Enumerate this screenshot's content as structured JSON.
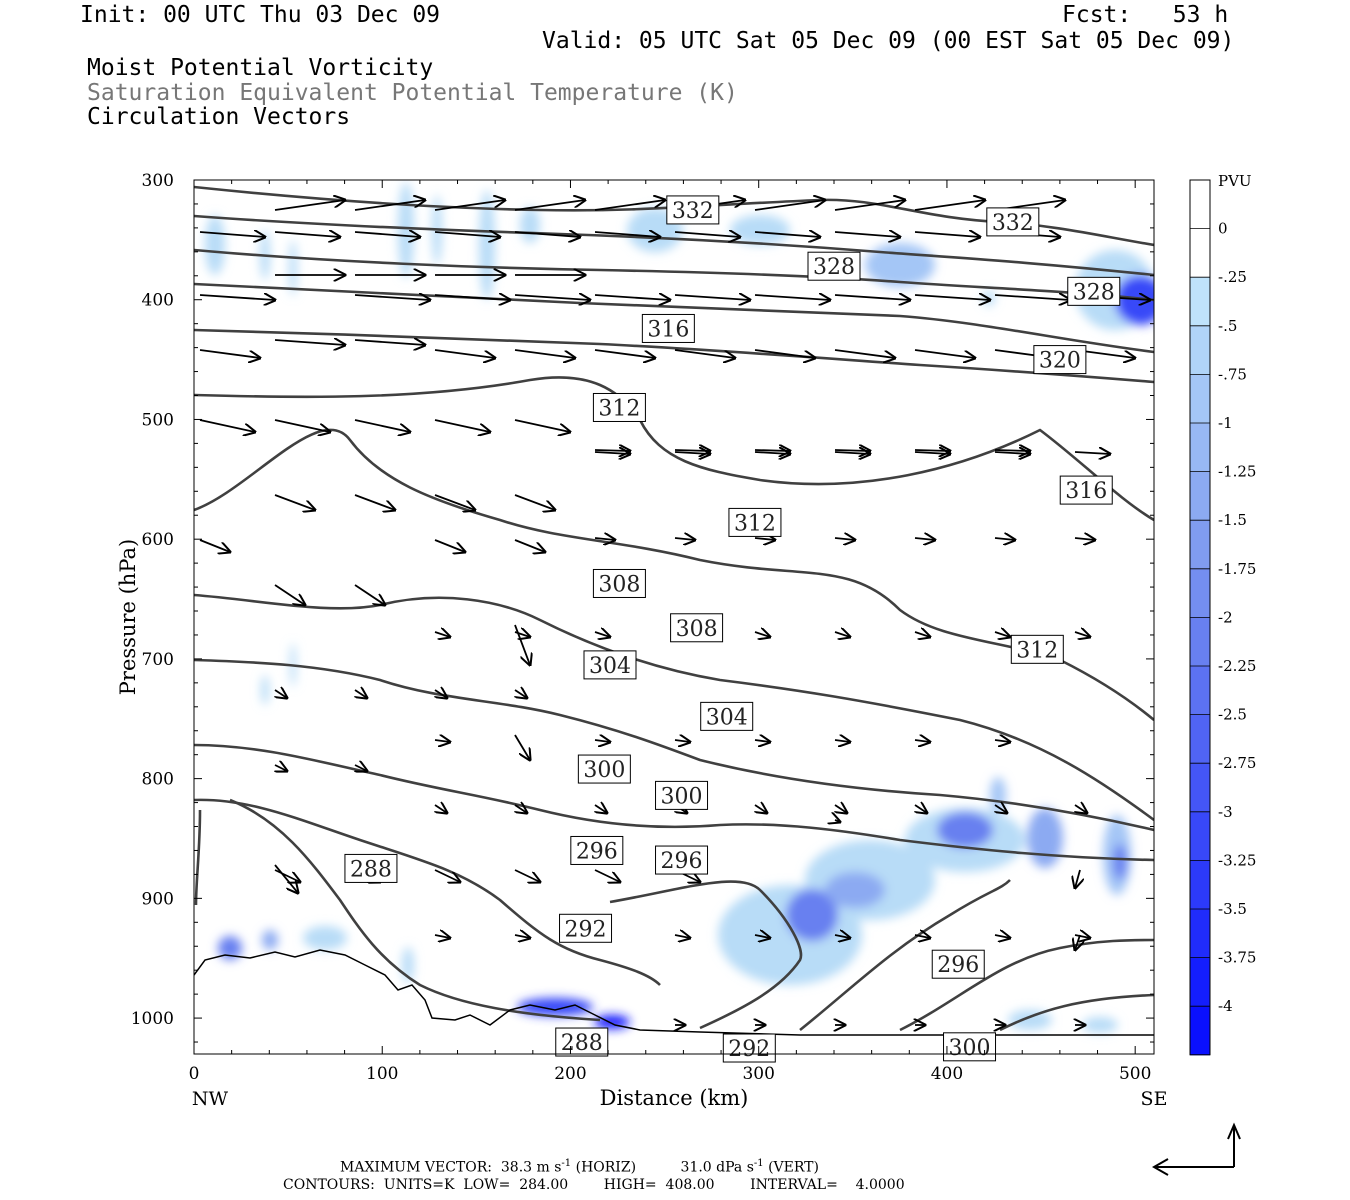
{
  "header": {
    "init": "Init: 00 UTC Thu 03 Dec 09",
    "fcst": "Fcst:   53 h",
    "valid": "Valid: 05 UTC Sat 05 Dec 09 (00 EST Sat 05 Dec 09)",
    "field1": "Moist Potential Vorticity",
    "field2": "Saturation Equivalent Potential Temperature (K)",
    "field3": "Circulation Vectors"
  },
  "footer": {
    "max_vector_prefix": "MAXIMUM VECTOR:  38.3 m s",
    "max_vector_exp1": "-1",
    "max_vector_mid": " (HORIZ)          31.0 dPa s",
    "max_vector_exp2": "-1",
    "max_vector_suffix": " (VERT)",
    "contours": "CONTOURS:  UNITS=K  LOW=  284.00        HIGH=  408.00        INTERVAL=    4.0000"
  },
  "colors": {
    "contour": "#404040",
    "pv_light": "#b8dcf7",
    "pv_dark": "#0000ff"
  },
  "chart_data": {
    "type": "heatmap",
    "xlabel": "Distance (km)",
    "ylabel": "Pressure (hPa)",
    "xlim": [
      0,
      510
    ],
    "ylim": [
      1030,
      300
    ],
    "x_ticks": [
      0,
      100,
      200,
      300,
      400,
      500
    ],
    "y_ticks": [
      300,
      400,
      500,
      600,
      700,
      800,
      900,
      1000
    ],
    "x_end_labels": {
      "left": "NW",
      "right": "SE"
    },
    "colorbar": {
      "title": "PVU",
      "levels": [
        "0",
        "-.25",
        "-.5",
        "-.75",
        "-1",
        "-1.25",
        "-1.5",
        "-1.75",
        "-2",
        "-2.25",
        "-2.5",
        "-2.75",
        "-3",
        "-3.25",
        "-3.5",
        "-3.75",
        "-4"
      ],
      "colors": [
        "#ffffff",
        "#ffffff",
        "#bfe3fb",
        "#b0d4f8",
        "#a4c6f6",
        "#98b8f4",
        "#8caaf2",
        "#809cf0",
        "#748ef0",
        "#6880f0",
        "#5c72f2",
        "#5064f4",
        "#4456f6",
        "#3848f8",
        "#2c3afa",
        "#202cfc",
        "#141efd",
        "#0a10fe"
      ]
    },
    "contour_levels_labeled": [
      {
        "value": "332",
        "x": 265,
        "p": 325
      },
      {
        "value": "332",
        "x": 435,
        "p": 335
      },
      {
        "value": "328",
        "x": 340,
        "p": 372
      },
      {
        "value": "328",
        "x": 478,
        "p": 393
      },
      {
        "value": "316",
        "x": 252,
        "p": 424
      },
      {
        "value": "320",
        "x": 460,
        "p": 450
      },
      {
        "value": "312",
        "x": 226,
        "p": 490
      },
      {
        "value": "312",
        "x": 298,
        "p": 586
      },
      {
        "value": "316",
        "x": 474,
        "p": 559
      },
      {
        "value": "308",
        "x": 226,
        "p": 637
      },
      {
        "value": "308",
        "x": 267,
        "p": 674
      },
      {
        "value": "312",
        "x": 448,
        "p": 692
      },
      {
        "value": "304",
        "x": 221,
        "p": 705
      },
      {
        "value": "304",
        "x": 283,
        "p": 748
      },
      {
        "value": "300",
        "x": 218,
        "p": 792
      },
      {
        "value": "300",
        "x": 259,
        "p": 814
      },
      {
        "value": "296",
        "x": 214,
        "p": 860
      },
      {
        "value": "296",
        "x": 259,
        "p": 868
      },
      {
        "value": "288",
        "x": 94,
        "p": 875
      },
      {
        "value": "292",
        "x": 208,
        "p": 925
      },
      {
        "value": "296",
        "x": 406,
        "p": 955
      },
      {
        "value": "288",
        "x": 206,
        "p": 1020
      },
      {
        "value": "292",
        "x": 295,
        "p": 1025
      },
      {
        "value": "300",
        "x": 412,
        "p": 1024
      }
    ]
  }
}
